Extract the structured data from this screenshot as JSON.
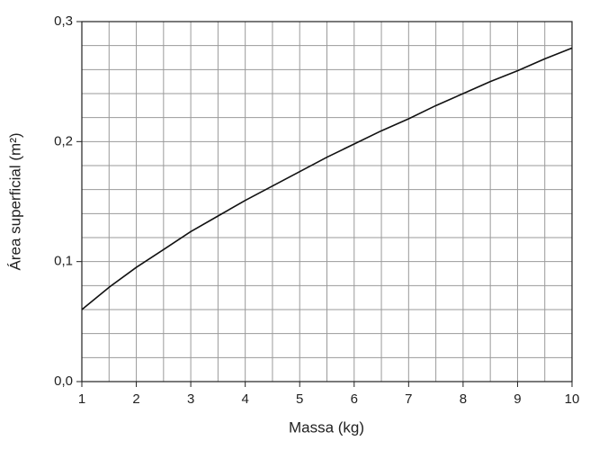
{
  "chart_data": {
    "type": "line",
    "x_label": "Massa (kg)",
    "y_label": "Área superficial (m²)",
    "x": [
      1,
      1.5,
      2,
      2.5,
      3,
      3.5,
      4,
      4.5,
      5,
      5.5,
      6,
      6.5,
      7,
      7.5,
      8,
      8.5,
      9,
      9.5,
      10
    ],
    "series": [
      {
        "color": "#111111",
        "values": [
          0.06,
          0.0786,
          0.0952,
          0.11,
          0.125,
          0.138,
          0.151,
          0.163,
          0.175,
          0.187,
          0.198,
          0.209,
          0.219,
          0.23,
          0.24,
          0.25,
          0.259,
          0.269,
          0.278
        ]
      }
    ],
    "xlim": [
      1,
      10
    ],
    "ylim": [
      0,
      0.3
    ],
    "xticks": [
      1,
      2,
      3,
      4,
      5,
      6,
      7,
      8,
      9,
      10
    ],
    "yticks": [
      {
        "value": 0,
        "label": "0,0"
      },
      {
        "value": 0.1,
        "label": "0,1"
      },
      {
        "value": 0.2,
        "label": "0,2"
      },
      {
        "value": 0.3,
        "label": "0,3"
      }
    ],
    "x_minor_grid": [
      1.5,
      2.5,
      3.5,
      4.5,
      5.5,
      6.5,
      7.5,
      8.5,
      9.5
    ],
    "y_minor_grid": [
      0.02,
      0.04,
      0.06,
      0.08,
      0.12,
      0.14,
      0.16,
      0.18,
      0.22,
      0.24,
      0.26,
      0.28
    ],
    "grid": true
  }
}
